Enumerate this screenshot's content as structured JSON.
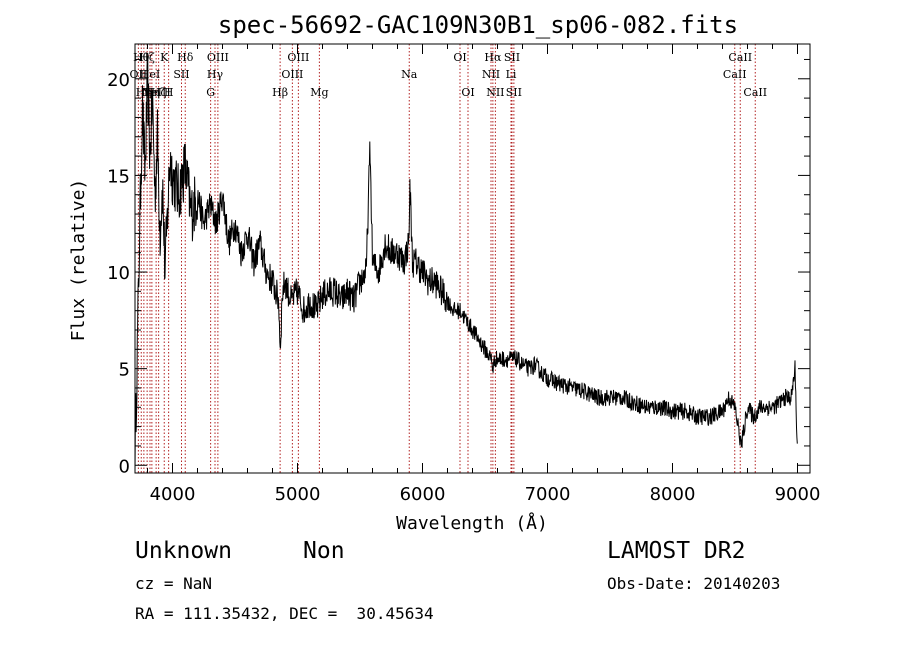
{
  "chart_data": {
    "type": "line",
    "title": "spec-56692-GAC109N30B1_sp06-082.fits",
    "xlabel": "Wavelength (Å)",
    "ylabel": "Flux (relative)",
    "xlim": [
      3700,
      9100
    ],
    "ylim": [
      -0.4,
      21.8
    ],
    "x_ticks": [
      4000,
      5000,
      6000,
      7000,
      8000,
      9000
    ],
    "y_ticks": [
      0,
      5,
      10,
      15,
      20
    ],
    "x_tick_labels": [
      "4000",
      "5000",
      "6000",
      "7000",
      "8000",
      "9000"
    ],
    "y_tick_labels": [
      "0",
      "5",
      "10",
      "15",
      "20"
    ],
    "series": [
      {
        "name": "flux",
        "x": [
          3700,
          3720,
          3740,
          3760,
          3780,
          3800,
          3820,
          3840,
          3860,
          3880,
          3900,
          3920,
          3940,
          3960,
          3980,
          4000,
          4050,
          4100,
          4150,
          4200,
          4250,
          4300,
          4350,
          4400,
          4450,
          4500,
          4550,
          4600,
          4650,
          4700,
          4750,
          4800,
          4850,
          4861,
          4880,
          4900,
          4950,
          5000,
          5050,
          5100,
          5150,
          5200,
          5250,
          5300,
          5350,
          5400,
          5450,
          5500,
          5550,
          5580,
          5600,
          5650,
          5700,
          5750,
          5800,
          5850,
          5890,
          5900,
          5920,
          5950,
          6000,
          6050,
          6100,
          6150,
          6200,
          6250,
          6300,
          6350,
          6400,
          6450,
          6500,
          6550,
          6563,
          6580,
          6600,
          6650,
          6700,
          6750,
          6800,
          6850,
          6900,
          6950,
          7000,
          7100,
          7200,
          7300,
          7400,
          7500,
          7600,
          7700,
          7800,
          7900,
          8000,
          8100,
          8200,
          8300,
          8400,
          8450,
          8500,
          8550,
          8600,
          8650,
          8700,
          8750,
          8800,
          8850,
          8900,
          8950,
          8980,
          9000
        ],
        "y": [
          0.5,
          6.5,
          13,
          18.5,
          15,
          20,
          16,
          19,
          14,
          17,
          12,
          14.5,
          10,
          13,
          16,
          15,
          14,
          15.5,
          13,
          14,
          12.5,
          13.5,
          12.5,
          14,
          11.5,
          12.5,
          11,
          12,
          10.5,
          11.5,
          10,
          9.5,
          8.5,
          6,
          9,
          9.5,
          8.5,
          9,
          8,
          8.5,
          8,
          8.8,
          9,
          9,
          8.5,
          9,
          8.5,
          9.5,
          10,
          16.5,
          10.5,
          10,
          11.5,
          11,
          11,
          10.5,
          11.5,
          14.5,
          10.5,
          10.5,
          10,
          9.5,
          9.5,
          9,
          8.5,
          8,
          8,
          7.5,
          7,
          6.5,
          6,
          5.5,
          5,
          5.5,
          5.5,
          5.5,
          5.5,
          5.5,
          5.2,
          5,
          5.2,
          4.8,
          4.5,
          4.2,
          4,
          3.8,
          3.5,
          3.5,
          3.5,
          3.2,
          3,
          3,
          2.8,
          2.8,
          2.5,
          2.5,
          2.8,
          3.5,
          3,
          1,
          3,
          2.5,
          3,
          3,
          3,
          3.2,
          3.5,
          3.5,
          5,
          0.5
        ]
      }
    ],
    "lines": [
      {
        "x": 3727,
        "label": "OII",
        "row": 2
      },
      {
        "x": 3750,
        "label": "Hθ",
        "row": 1
      },
      {
        "x": 3771,
        "label": "Hη",
        "row": 3
      },
      {
        "x": 3797,
        "label": "Hζ",
        "row": 1
      },
      {
        "x": 3820,
        "label": "HeI",
        "row": 2
      },
      {
        "x": 3835,
        "label": "Hη",
        "row": 3
      },
      {
        "x": 3869,
        "label": "NeIII",
        "row": 3
      },
      {
        "x": 3889,
        "label": "Hζ",
        "row": 3
      },
      {
        "x": 3934,
        "label": "K",
        "row": 1
      },
      {
        "x": 3969,
        "label": "H",
        "row": 3
      },
      {
        "x": 4072,
        "label": "SII",
        "row": 2
      },
      {
        "x": 4102,
        "label": "Hδ",
        "row": 1
      },
      {
        "x": 4305,
        "label": "G",
        "row": 3
      },
      {
        "x": 4340,
        "label": "Hγ",
        "row": 2
      },
      {
        "x": 4363,
        "label": "OIII",
        "row": 1
      },
      {
        "x": 4861,
        "label": "Hβ",
        "row": 3
      },
      {
        "x": 4959,
        "label": "OIII",
        "row": 2
      },
      {
        "x": 5007,
        "label": "OIII",
        "row": 1
      },
      {
        "x": 5175,
        "label": "Mg",
        "row": 3
      },
      {
        "x": 5894,
        "label": "Na",
        "row": 2
      },
      {
        "x": 6300,
        "label": "OI",
        "row": 1
      },
      {
        "x": 6364,
        "label": "OI",
        "row": 3
      },
      {
        "x": 6548,
        "label": "NII",
        "row": 2
      },
      {
        "x": 6563,
        "label": "Hα",
        "row": 1
      },
      {
        "x": 6583,
        "label": "NII",
        "row": 3
      },
      {
        "x": 6708,
        "label": "Li",
        "row": 2
      },
      {
        "x": 6716,
        "label": "SII",
        "row": 1
      },
      {
        "x": 6731,
        "label": "SII",
        "row": 3
      },
      {
        "x": 8498,
        "label": "CaII",
        "row": 2
      },
      {
        "x": 8542,
        "label": "CaII",
        "row": 1
      },
      {
        "x": 8662,
        "label": "CaII",
        "row": 3
      }
    ]
  },
  "info": {
    "class": "Unknown",
    "subclass": "Non",
    "survey": "LAMOST DR2",
    "cz": "cz = NaN",
    "obs_date": "Obs-Date: 20140203",
    "coords": "RA = 111.35432, DEC =  30.45634"
  }
}
